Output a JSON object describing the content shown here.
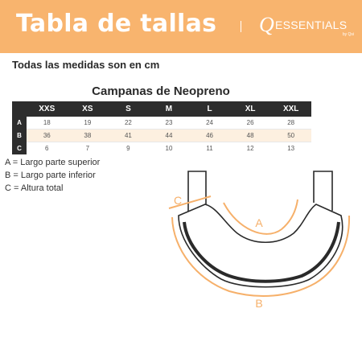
{
  "header": {
    "title": "Tabla de tallas",
    "brand_q": "Q",
    "brand_name": "ESSENTIALS",
    "brand_sub": "by Qsi"
  },
  "subtitle": "Todas las medidas son en cm",
  "table": {
    "title": "Campanas de Neopreno",
    "columns": [
      "XXS",
      "XS",
      "S",
      "M",
      "L",
      "XL",
      "XXL"
    ],
    "rows": [
      {
        "label": "A",
        "values": [
          "18",
          "19",
          "22",
          "23",
          "24",
          "26",
          "28"
        ]
      },
      {
        "label": "B",
        "values": [
          "36",
          "38",
          "41",
          "44",
          "46",
          "48",
          "50"
        ]
      },
      {
        "label": "C",
        "values": [
          "6",
          "7",
          "9",
          "10",
          "11",
          "12",
          "13"
        ]
      }
    ]
  },
  "legend": [
    "A = Largo parte superior",
    "B = Largo parte inferior",
    "C = Altura total"
  ],
  "diagram": {
    "labels": {
      "a": "A",
      "b": "B",
      "c": "C"
    }
  },
  "colors": {
    "header_bg": "#f8b46e",
    "accent": "#f6b06a",
    "table_header": "#2d2d2d",
    "highlight_row": "#fdf0e0"
  }
}
